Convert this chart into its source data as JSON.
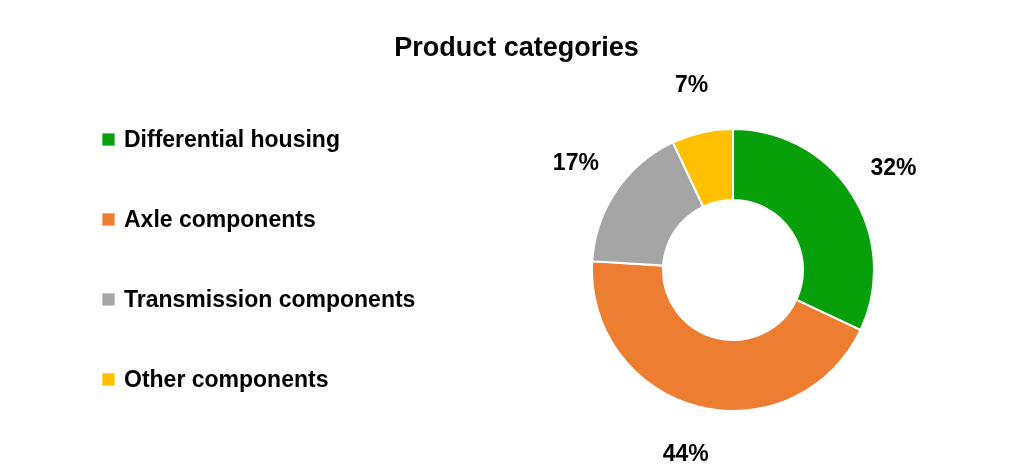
{
  "chart_data": {
    "type": "donut",
    "title": "Product categories",
    "categories": [
      "Differential housing",
      "Axle components",
      "Transmission components",
      "Other components"
    ],
    "values": [
      32,
      44,
      17,
      7
    ],
    "colors": [
      "#07a00a",
      "#ed7d31",
      "#a5a5a5",
      "#ffc000"
    ],
    "value_labels": [
      "32%",
      "44%",
      "17%",
      "7%"
    ],
    "legend": "left"
  }
}
